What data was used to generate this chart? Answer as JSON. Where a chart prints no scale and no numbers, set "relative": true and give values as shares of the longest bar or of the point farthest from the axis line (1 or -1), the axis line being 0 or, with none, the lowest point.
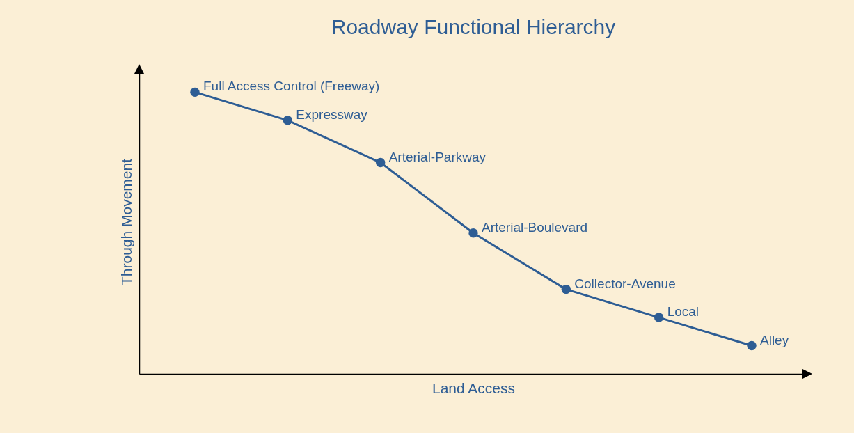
{
  "chart_data": {
    "type": "line",
    "title": "Roadway Functional Hierarchy",
    "xlabel": "Land Access",
    "ylabel": "Through Movement",
    "relative": true,
    "marker": "circle",
    "categories": [
      null,
      null,
      null,
      null,
      null,
      null,
      null
    ],
    "series": [
      {
        "color": "#2e5d94",
        "values": [
          1,
          0.9,
          0.75,
          0.5,
          0.3,
          0.2,
          0.1
        ]
      }
    ],
    "annotations": [
      "Full Access Control (Freeway)",
      "Expressway",
      "Arterial-Parkway",
      "Arterial-Boulevard",
      "Collector-Avenue",
      "Local",
      "Alley"
    ]
  }
}
